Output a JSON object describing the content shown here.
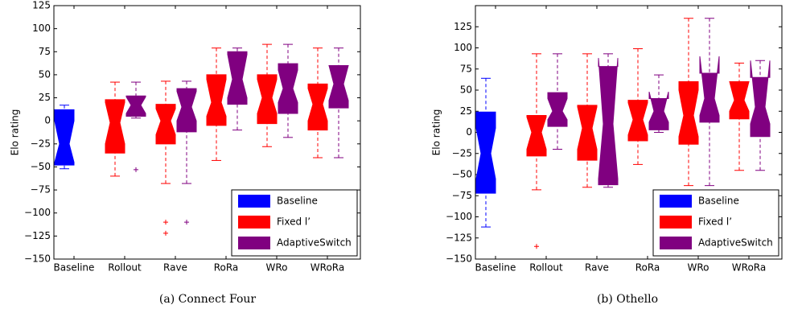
{
  "chart_data": [
    {
      "type": "box",
      "caption": "(a) Connect Four",
      "ylabel": "Elo rating",
      "categories": [
        "Baseline",
        "Rollout",
        "Rave",
        "RoRa",
        "WRo",
        "WRoRa"
      ],
      "ylim": [
        -150,
        125
      ],
      "yticks": [
        {
          "value": -150,
          "label": "−150"
        },
        {
          "value": -125,
          "label": "−125"
        },
        {
          "value": -100,
          "label": "−100"
        },
        {
          "value": -75,
          "label": "−75"
        },
        {
          "value": -50,
          "label": "−50"
        },
        {
          "value": -25,
          "label": "−25"
        },
        0,
        25,
        50,
        75,
        100,
        125
      ],
      "legend": "lower right",
      "series": [
        {
          "name": "Baseline",
          "color": "#0000ff",
          "boxes": [
            {
              "low": -52,
              "q1": -48,
              "median": -25,
              "q3": 12,
              "high": 17,
              "notch": [
                -45,
                0
              ],
              "outliers": []
            },
            null,
            null,
            null,
            null,
            null
          ]
        },
        {
          "name": "Fixed l’",
          "color": "#ff0000",
          "boxes": [
            null,
            {
              "low": -60,
              "q1": -35,
              "median": -2,
              "q3": 23,
              "high": 42,
              "notch": [
                -25,
                20
              ],
              "outliers": []
            },
            {
              "low": -68,
              "q1": -25,
              "median": 0,
              "q3": 18,
              "high": 43,
              "notch": [
                -15,
                13
              ],
              "outliers": [
                -110,
                -122
              ]
            },
            {
              "low": -43,
              "q1": -5,
              "median": 20,
              "q3": 50,
              "high": 79,
              "notch": [
                5,
                45
              ],
              "outliers": []
            },
            {
              "low": -28,
              "q1": -3,
              "median": 25,
              "q3": 50,
              "high": 83,
              "notch": [
                8,
                45
              ],
              "outliers": []
            },
            {
              "low": -40,
              "q1": -10,
              "median": 18,
              "q3": 40,
              "high": 79,
              "notch": [
                0,
                35
              ],
              "outliers": []
            }
          ]
        },
        {
          "name": "AdaptiveSwitch",
          "color": "#800080",
          "boxes": [
            null,
            {
              "low": 3,
              "q1": 5,
              "median": 17,
              "q3": 27,
              "high": 42,
              "notch": [
                8,
                26
              ],
              "outliers": [
                -53
              ]
            },
            {
              "low": -68,
              "q1": -12,
              "median": 15,
              "q3": 35,
              "high": 43,
              "notch": [
                0,
                32
              ],
              "outliers": [
                -110
              ]
            },
            {
              "low": -10,
              "q1": 18,
              "median": 45,
              "q3": 75,
              "high": 79,
              "notch": [
                25,
                72
              ],
              "outliers": []
            },
            {
              "low": -18,
              "q1": 8,
              "median": 35,
              "q3": 62,
              "high": 83,
              "notch": [
                20,
                55
              ],
              "outliers": []
            },
            {
              "low": -40,
              "q1": 14,
              "median": 40,
              "q3": 60,
              "high": 79,
              "notch": [
                22,
                60
              ],
              "outliers": []
            }
          ]
        }
      ]
    },
    {
      "type": "box",
      "caption": "(b) Othello",
      "ylabel": "Elo rating",
      "categories": [
        "Baseline",
        "Rollout",
        "Rave",
        "RoRa",
        "WRo",
        "WRoRa"
      ],
      "ylim": [
        -150,
        150
      ],
      "yticks": [
        {
          "value": -150,
          "label": "−150"
        },
        {
          "value": -125,
          "label": "−125"
        },
        {
          "value": -100,
          "label": "−100"
        },
        {
          "value": -75,
          "label": "−75"
        },
        {
          "value": -50,
          "label": "−50"
        },
        {
          "value": -25,
          "label": "−25"
        },
        0,
        25,
        50,
        75,
        100,
        125
      ],
      "legend": "lower right",
      "series": [
        {
          "name": "Baseline",
          "color": "#0000ff",
          "boxes": [
            {
              "low": -112,
              "q1": -72,
              "median": -25,
              "q3": 24,
              "high": 64,
              "notch": [
                -55,
                5
              ],
              "outliers": []
            },
            null,
            null,
            null,
            null,
            null
          ]
        },
        {
          "name": "Fixed l’",
          "color": "#ff0000",
          "boxes": [
            null,
            {
              "low": -68,
              "q1": -28,
              "median": 0,
              "q3": 20,
              "high": 93,
              "notch": [
                -20,
                18
              ],
              "outliers": [
                -135
              ]
            },
            {
              "low": -65,
              "q1": -33,
              "median": 5,
              "q3": 32,
              "high": 93,
              "notch": [
                -20,
                30
              ],
              "outliers": []
            },
            {
              "low": -38,
              "q1": -10,
              "median": 15,
              "q3": 38,
              "high": 99,
              "notch": [
                -3,
                35
              ],
              "outliers": []
            },
            {
              "low": -63,
              "q1": -14,
              "median": 20,
              "q3": 60,
              "high": 135,
              "notch": [
                -5,
                50
              ],
              "outliers": []
            },
            {
              "low": -45,
              "q1": 16,
              "median": 38,
              "q3": 60,
              "high": 82,
              "notch": [
                25,
                60
              ],
              "outliers": []
            }
          ]
        },
        {
          "name": "AdaptiveSwitch",
          "color": "#800080",
          "boxes": [
            null,
            {
              "low": -20,
              "q1": 7,
              "median": 25,
              "q3": 47,
              "high": 93,
              "notch": [
                15,
                40
              ],
              "outliers": []
            },
            {
              "low": -65,
              "q1": -62,
              "median": 10,
              "q3": 78,
              "high": 93,
              "notch": [
                -55,
                88
              ],
              "outliers": []
            },
            {
              "low": 0,
              "q1": 3,
              "median": 25,
              "q3": 40,
              "high": 68,
              "notch": [
                12,
                48
              ],
              "outliers": []
            },
            {
              "low": -63,
              "q1": 12,
              "median": 40,
              "q3": 70,
              "high": 135,
              "notch": [
                20,
                90
              ],
              "outliers": []
            },
            {
              "low": -45,
              "q1": -5,
              "median": 30,
              "q3": 65,
              "high": 85,
              "notch": [
                10,
                85
              ],
              "outliers": []
            }
          ]
        }
      ]
    }
  ]
}
